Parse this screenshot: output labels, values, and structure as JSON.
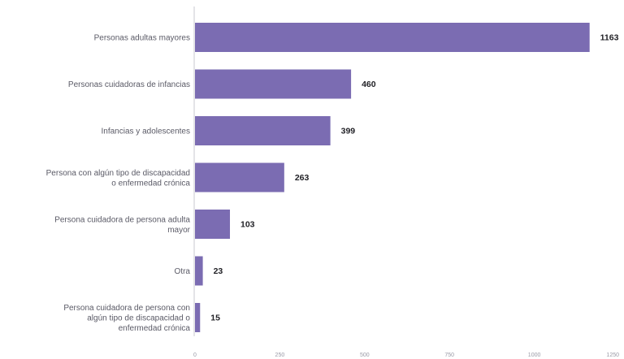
{
  "chart_data": {
    "type": "bar",
    "orientation": "horizontal",
    "title": "",
    "xlabel": "",
    "ylabel": "",
    "categories": [
      "Personas adultas mayores",
      "Personas cuidadoras de infancias",
      "Infancias y adolescentes",
      "Persona con algún tipo de discapacidad o enfermedad crónica",
      "Persona cuidadora de persona adulta mayor",
      "Otra",
      "Persona cuidadora de persona con algún tipo de discapacidad o enfermedad crónica"
    ],
    "category_lines": [
      [
        "Personas adultas mayores"
      ],
      [
        "Personas cuidadoras de infancias"
      ],
      [
        "Infancias y adolescentes"
      ],
      [
        "Persona con algún tipo de discapacidad",
        "o enfermedad crónica"
      ],
      [
        "Persona cuidadora de persona adulta",
        "mayor"
      ],
      [
        "Otra"
      ],
      [
        "Persona cuidadora de persona con",
        "algún tipo de discapacidad o",
        "enfermedad crónica"
      ]
    ],
    "values": [
      1163,
      460,
      399,
      263,
      103,
      23,
      15
    ],
    "xlim": [
      0,
      1250
    ],
    "xticks": [
      0,
      250,
      500,
      750,
      1000,
      1250
    ],
    "bar_color": "#7b6cb2",
    "grid": false,
    "legend": "none"
  }
}
